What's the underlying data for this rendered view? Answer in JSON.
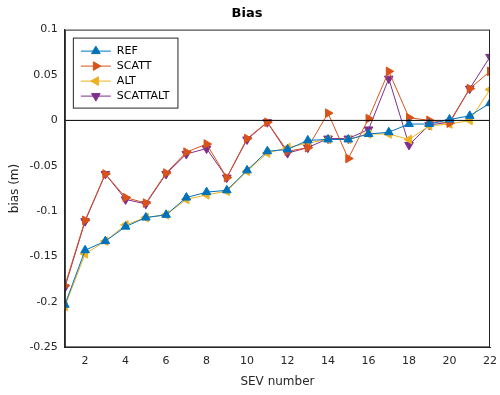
{
  "chart_data": {
    "type": "line",
    "title": "Bias",
    "x_label": "SEV number",
    "y_label": "bias (m)",
    "x": [
      1,
      2,
      3,
      4,
      5,
      6,
      7,
      8,
      9,
      10,
      11,
      12,
      13,
      14,
      15,
      16,
      17,
      18,
      19,
      20,
      21,
      22
    ],
    "series": [
      {
        "name": "REF",
        "color": "#0072bd",
        "marker": "triangle-up",
        "values": [
          -0.203,
          -0.143,
          -0.133,
          -0.117,
          -0.107,
          -0.104,
          -0.085,
          -0.079,
          -0.077,
          -0.055,
          -0.034,
          -0.032,
          -0.022,
          -0.021,
          -0.021,
          -0.015,
          -0.013,
          -0.004,
          -0.004,
          0.001,
          0.005,
          0.019
        ]
      },
      {
        "name": "SCATT",
        "color": "#d95319",
        "marker": "triangle-right",
        "values": [
          -0.182,
          -0.11,
          -0.059,
          -0.085,
          -0.091,
          -0.058,
          -0.035,
          -0.026,
          -0.063,
          -0.02,
          -0.002,
          -0.034,
          -0.03,
          0.008,
          -0.042,
          0.002,
          0.054,
          0.003,
          0.0,
          -0.003,
          0.035,
          0.054
        ]
      },
      {
        "name": "ALT",
        "color": "#edb120",
        "marker": "triangle-left",
        "values": [
          -0.205,
          -0.147,
          -0.133,
          -0.115,
          -0.107,
          -0.104,
          -0.087,
          -0.082,
          -0.078,
          -0.056,
          -0.036,
          -0.03,
          -0.025,
          -0.021,
          -0.021,
          -0.015,
          -0.015,
          -0.021,
          -0.006,
          -0.004,
          0.0,
          0.034
        ]
      },
      {
        "name": "SCATTALT",
        "color": "#7e2f8e",
        "marker": "triangle-down",
        "values": [
          -0.184,
          -0.111,
          -0.059,
          -0.087,
          -0.092,
          -0.059,
          -0.037,
          -0.031,
          -0.063,
          -0.021,
          -0.002,
          -0.036,
          -0.03,
          -0.02,
          -0.02,
          -0.01,
          0.046,
          -0.027,
          -0.005,
          -0.002,
          0.035,
          0.07
        ]
      }
    ],
    "reference_line": 0,
    "xlim": [
      1,
      22
    ],
    "xticks": [
      2,
      4,
      6,
      8,
      10,
      12,
      14,
      16,
      18,
      20,
      22
    ],
    "ylim": [
      -0.25,
      0.1
    ],
    "yticks": [
      -0.25,
      -0.2,
      -0.15,
      -0.1,
      -0.05,
      0,
      0.05,
      0.1
    ],
    "grid": false,
    "legend": "top-left"
  }
}
